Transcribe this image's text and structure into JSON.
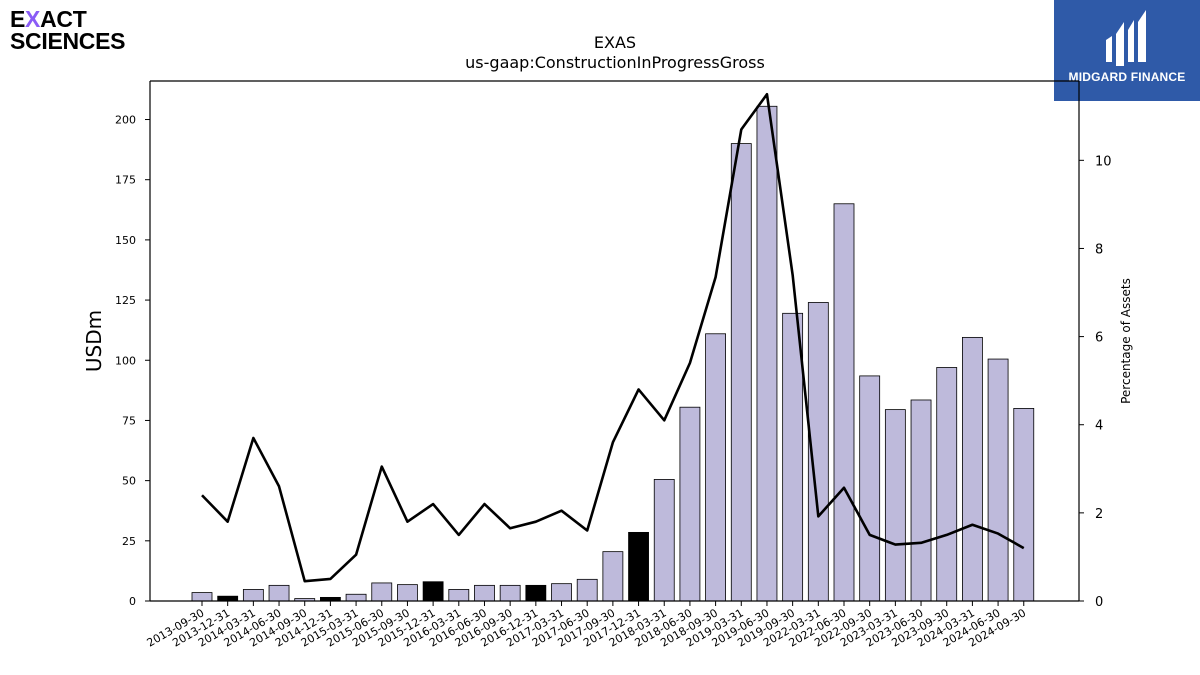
{
  "logo_left": {
    "line1": "EXACT",
    "line2": "SCIENCES",
    "accent_color": "#8a5cf6"
  },
  "logo_right": {
    "text": "MIDGARD FINANCE",
    "bg_color": "#2f5aa8"
  },
  "chart_data": {
    "type": "bar",
    "title": "EXAS",
    "subtitle": "us-gaap:ConstructionInProgressGross",
    "ylabel": "USDm",
    "y2label": "Percentage of Assets",
    "ylim": [
      0,
      216
    ],
    "y2lim": [
      0,
      11.8
    ],
    "yticks": [
      0,
      25,
      50,
      75,
      100,
      125,
      150,
      175,
      200
    ],
    "y2ticks": [
      0,
      2,
      4,
      6,
      8,
      10
    ],
    "bar_color": "#bebadb",
    "highlight_color": "#000000",
    "line_color": "#000000",
    "categories": [
      "2013-09-30",
      "2013-12-31",
      "2014-03-31",
      "2014-06-30",
      "2014-09-30",
      "2014-12-31",
      "2015-03-31",
      "2015-06-30",
      "2015-09-30",
      "2015-12-31",
      "2016-03-31",
      "2016-06-30",
      "2016-09-30",
      "2016-12-31",
      "2017-03-31",
      "2017-06-30",
      "2017-09-30",
      "2017-12-31",
      "2018-03-31",
      "2018-06-30",
      "2018-09-30",
      "2019-03-31",
      "2019-06-30",
      "2019-09-30",
      "2022-03-31",
      "2022-06-30",
      "2022-09-30",
      "2023-03-31",
      "2023-06-30",
      "2023-09-30",
      "2024-03-31",
      "2024-06-30",
      "2024-09-30"
    ],
    "series": [
      {
        "kind": "bar",
        "values": [
          3.5,
          2.0,
          4.8,
          6.5,
          1.0,
          1.5,
          2.8,
          7.5,
          6.8,
          8.0,
          4.8,
          6.5,
          6.5,
          6.5,
          7.2,
          9.0,
          20.5,
          28.5,
          50.5,
          80.5,
          111.0,
          190.0,
          205.5,
          119.5,
          124.0,
          165.0,
          93.5,
          79.5,
          83.5,
          97.0,
          109.5,
          100.5,
          80.0
        ],
        "highlight": [
          false,
          true,
          false,
          false,
          false,
          true,
          false,
          false,
          false,
          true,
          false,
          false,
          false,
          true,
          false,
          false,
          false,
          true,
          false,
          false,
          false,
          false,
          false,
          false,
          false,
          false,
          false,
          false,
          false,
          false,
          false,
          false,
          false
        ]
      },
      {
        "kind": "line",
        "axis": "right",
        "values": [
          2.4,
          1.8,
          3.7,
          2.6,
          0.45,
          0.5,
          1.05,
          3.05,
          1.8,
          2.2,
          1.5,
          2.2,
          1.65,
          1.8,
          2.05,
          1.6,
          3.6,
          4.8,
          4.1,
          5.4,
          7.35,
          10.7,
          11.5,
          7.4,
          1.92,
          2.57,
          1.5,
          1.28,
          1.32,
          1.5,
          1.73,
          1.53,
          1.2
        ]
      }
    ]
  }
}
